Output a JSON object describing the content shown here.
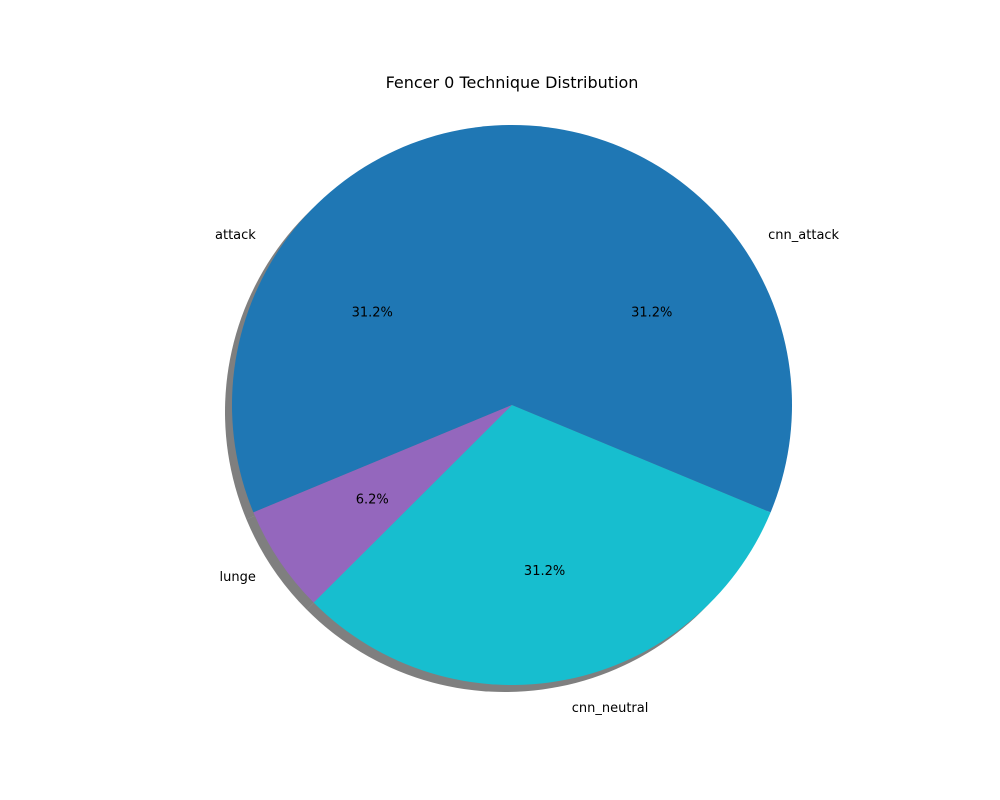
{
  "chart_data": {
    "type": "pie",
    "title": "Fencer 0 Technique Distribution",
    "start_angle_deg": 90,
    "direction": "counterclockwise",
    "shadow": true,
    "slices": [
      {
        "label": "attack",
        "value": 31.2,
        "pct_label": "31.2%",
        "color": "#1f77b4"
      },
      {
        "label": "lunge",
        "value": 6.2,
        "pct_label": "6.2%",
        "color": "#9467bd"
      },
      {
        "label": "cnn_neutral",
        "value": 31.2,
        "pct_label": "31.2%",
        "color": "#17becf"
      },
      {
        "label": "cnn_attack",
        "value": 31.2,
        "pct_label": "31.2%",
        "color": "#1f77b4"
      }
    ]
  }
}
